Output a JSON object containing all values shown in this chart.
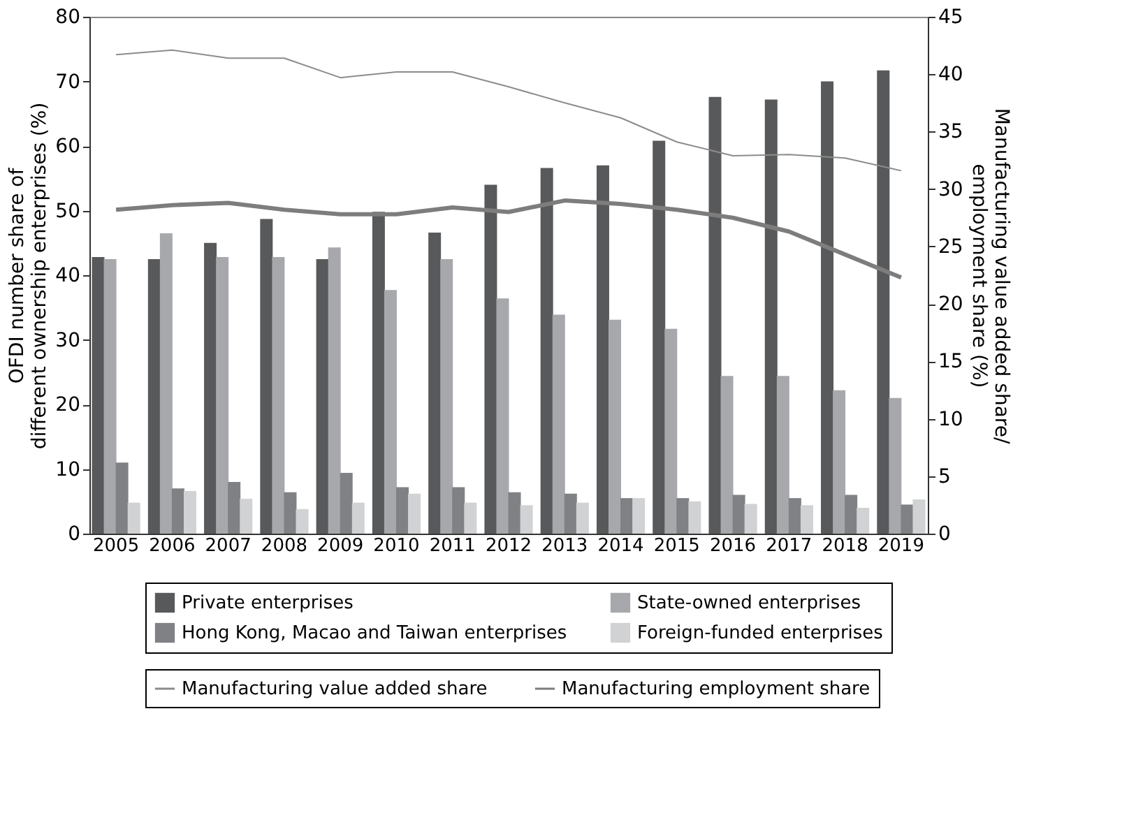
{
  "chart_data": {
    "type": "bar",
    "ylabel": "OFDI number share of different ownership enterprises (%)",
    "y2label": "Manufacturing value added share/ employment share (%)",
    "categories": [
      "2005",
      "2006",
      "2007",
      "2008",
      "2009",
      "2010",
      "2011",
      "2012",
      "2013",
      "2014",
      "2015",
      "2016",
      "2017",
      "2018",
      "2019"
    ],
    "ylim": [
      0,
      80
    ],
    "yticks": [
      0,
      10,
      20,
      30,
      40,
      50,
      60,
      70,
      80
    ],
    "y2lim": [
      0,
      45
    ],
    "y2ticks": [
      0,
      5,
      10,
      15,
      20,
      25,
      30,
      35,
      40,
      45
    ],
    "grid": false,
    "legend": "bottom",
    "series": [
      {
        "name": "Private enterprises",
        "color": "#58595b",
        "values": [
          42.8,
          42.5,
          45,
          48.7,
          42.5,
          49.8,
          46.6,
          54,
          56.6,
          57,
          60.8,
          67.6,
          67.2,
          70,
          71.7
        ]
      },
      {
        "name": "State-owned enterprises",
        "color": "#a7a8ab",
        "values": [
          42.5,
          46.5,
          42.8,
          42.8,
          44.3,
          37.7,
          42.5,
          36.4,
          33.9,
          33.1,
          31.7,
          24.4,
          24.4,
          22.2,
          21
        ]
      },
      {
        "name": "Hong Kong, Macao and Taiwan enterprises",
        "color": "#808184",
        "values": [
          11,
          7,
          8,
          6.4,
          9.4,
          7.2,
          7.2,
          6.4,
          6.2,
          5.5,
          5.5,
          6,
          5.5,
          6,
          4.5
        ]
      },
      {
        "name": "Foreign-funded enterprises",
        "color": "#d1d2d4",
        "values": [
          4.8,
          6.6,
          5.4,
          3.8,
          4.8,
          6.2,
          4.8,
          4.4,
          4.8,
          5.5,
          5,
          4.6,
          4.4,
          4,
          5.3
        ]
      },
      {
        "name": "Manufacturing value added share",
        "color": "#8c8c8c",
        "type": "line",
        "axis": "y2",
        "values": [
          41.7,
          42.1,
          41.4,
          41.4,
          39.7,
          40.2,
          40.2,
          38.9,
          37.5,
          36.2,
          34.1,
          32.9,
          33.0,
          32.7,
          31.6
        ]
      },
      {
        "name": "Manufacturing employment share",
        "color": "#7d7d7d",
        "type": "line",
        "axis": "y2",
        "values": [
          28.2,
          28.6,
          28.8,
          28.2,
          27.8,
          27.8,
          28.4,
          28.0,
          29.0,
          28.7,
          28.2,
          27.5,
          26.3,
          24.3,
          22.3
        ]
      }
    ]
  }
}
